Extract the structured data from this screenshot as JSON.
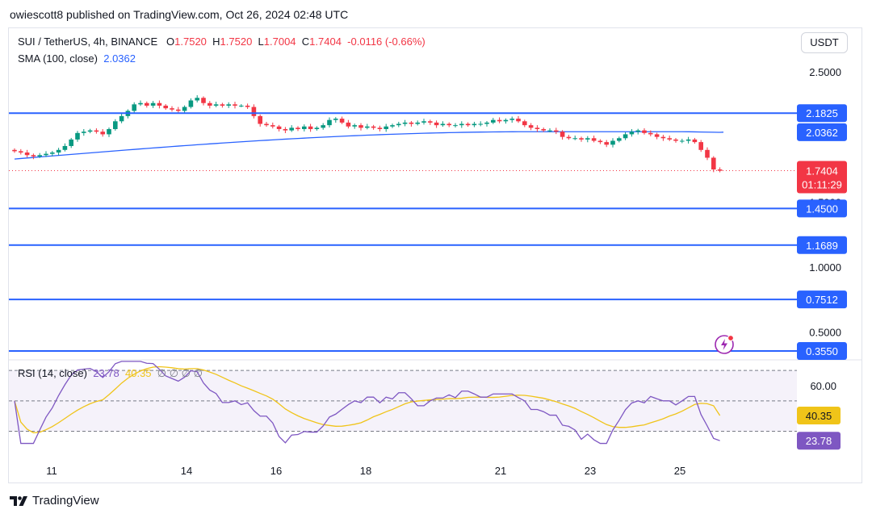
{
  "header": {
    "published": "owiescott8 published on TradingView.com, Oct 26, 2024 02:48 UTC"
  },
  "currency_button": "USDT",
  "legend": {
    "symbol": "SUI / TetherUS, 4h, BINANCE",
    "open_label": "O",
    "open": "1.7520",
    "high_label": "H",
    "high": "1.7520",
    "low_label": "L",
    "low": "1.7004",
    "close_label": "C",
    "close": "1.7404",
    "change": "-0.0116 (-0.66%)",
    "sma_label": "SMA (100, close)",
    "sma_value": "2.0362"
  },
  "rsi_legend": {
    "label": "RSI (14, close)",
    "rsi": "23.78",
    "ma": "40.35",
    "empties": "∅ ∅ ∅ ∅"
  },
  "colors": {
    "up": "#089981",
    "down": "#f23645",
    "level": "#2962ff",
    "sma": "#2962ff",
    "rsi": "#7e57c2",
    "rsi_ma": "#f0c419"
  },
  "chart_data": [
    {
      "type": "candlestick",
      "title": "SUI / TetherUS, 4h, BINANCE",
      "y_axis_ticks": [
        "2.5000",
        "1.5000",
        "1.0000",
        "0.5000"
      ],
      "x_axis_ticks": [
        "11",
        "14",
        "16",
        "18",
        "21",
        "23",
        "25"
      ],
      "horizontal_levels": [
        "2.1825",
        "1.4500",
        "1.1689",
        "0.7512",
        "0.3550"
      ],
      "current_price": "1.7404",
      "countdown": "01:11:29",
      "sma_value": "2.0362",
      "close_series_approx": [
        1.89,
        1.88,
        1.86,
        1.85,
        1.86,
        1.87,
        1.88,
        1.9,
        1.93,
        1.98,
        2.03,
        2.04,
        2.05,
        2.04,
        2.02,
        2.06,
        2.12,
        2.16,
        2.2,
        2.25,
        2.26,
        2.24,
        2.26,
        2.24,
        2.22,
        2.21,
        2.2,
        2.23,
        2.28,
        2.3,
        2.26,
        2.24,
        2.25,
        2.24,
        2.25,
        2.24,
        2.24,
        2.23,
        2.16,
        2.1,
        2.09,
        2.08,
        2.06,
        2.05,
        2.07,
        2.06,
        2.08,
        2.06,
        2.07,
        2.09,
        2.13,
        2.14,
        2.11,
        2.08,
        2.09,
        2.07,
        2.08,
        2.07,
        2.06,
        2.08,
        2.09,
        2.1,
        2.11,
        2.1,
        2.11,
        2.12,
        2.11,
        2.09,
        2.1,
        2.09,
        2.09,
        2.1,
        2.09,
        2.1,
        2.1,
        2.11,
        2.13,
        2.12,
        2.13,
        2.14,
        2.12,
        2.09,
        2.07,
        2.06,
        2.05,
        2.05,
        2.04,
        2.0,
        1.99,
        1.99,
        1.98,
        1.99,
        1.97,
        1.96,
        1.94,
        1.97,
        1.99,
        2.02,
        2.04,
        2.05,
        2.03,
        2.02,
        2.0,
        1.99,
        1.98,
        1.97,
        1.97,
        1.98,
        1.96,
        1.9,
        1.84,
        1.75,
        1.74
      ]
    },
    {
      "type": "line",
      "title": "RSI (14, close)",
      "y_axis_ticks": [
        "60.00",
        "40.35",
        "23.78"
      ],
      "rsi_latest": "23.78",
      "rsi_ma_latest": "40.35"
    }
  ]
}
